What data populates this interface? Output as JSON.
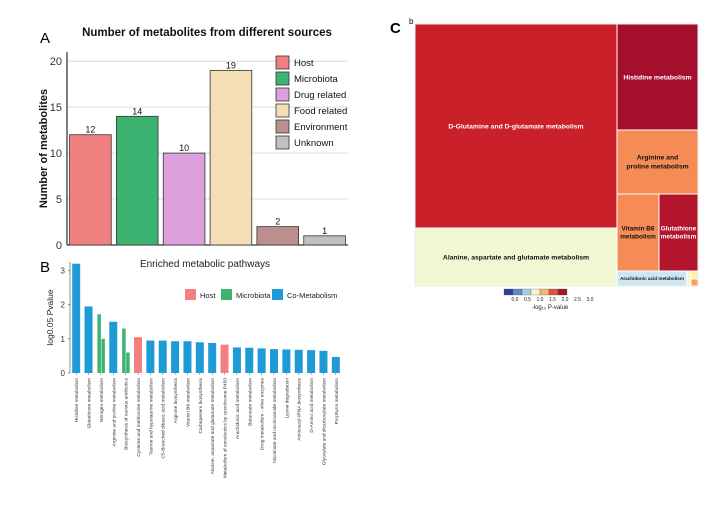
{
  "panels": {
    "a": "A",
    "b": "B",
    "c": "C",
    "c_small": "b"
  },
  "chart_data": [
    {
      "type": "bar",
      "id": "A",
      "title": "Number of metabolites from different sources",
      "ylabel": "Number of metabolites",
      "xlabel": "",
      "ylim": [
        0,
        21
      ],
      "yticks": [
        0,
        5,
        10,
        15,
        20
      ],
      "grid": true,
      "categories": [
        "Host",
        "Microbiota",
        "Drug related",
        "Food related",
        "Environment",
        "Unknown"
      ],
      "values": [
        12,
        14,
        10,
        19,
        2,
        1
      ],
      "colors": [
        "#f08080",
        "#3cb371",
        "#dda0dd",
        "#f5deb3",
        "#bc8f8f",
        "#c0c0c0"
      ],
      "legend": {
        "position": "right",
        "entries": [
          "Host",
          "Microbiota",
          "Drug related",
          "Food related",
          "Environment",
          "Unknown"
        ]
      }
    },
    {
      "type": "bar",
      "id": "B",
      "title": "Enriched metabolic pathways",
      "ylabel": "log0.05 Pvalue",
      "ylim": [
        0,
        3.25
      ],
      "yticks": [
        0,
        1,
        2,
        3
      ],
      "legend": {
        "position": "top-right",
        "entries": [
          {
            "name": "Host",
            "color": "#f28080"
          },
          {
            "name": "Microbiota",
            "color": "#3cb371"
          },
          {
            "name": "Co-Metabolism",
            "color": "#1e9bd7"
          }
        ]
      },
      "categories": [
        "Histidine metabolism",
        "Glutathione metabolism",
        "Nitrogen metabolism",
        "Arginine and proline metabolism",
        "Biosynthesis of various antibiotics",
        "Cysteine and methionine metabolism",
        "Taurine and hypotaurine metabolism",
        "C5-Branched dibasic acid metabolism",
        "Arginine biosynthesis",
        "Vitamin B6 metabolism",
        "Carbapenem biosynthesis",
        "Alanine, aspartate and glutamate metabolism",
        "Metabolism of xenobiotics by cytochrome P450",
        "Arachidonic acid metabolism",
        "Butanoate metabolism",
        "Drug metabolism - other enzymes",
        "Nicotinate and nicotinamide metabolism",
        "Lysine degradation",
        "Aminoacyl-tRNA biosynthesis",
        "D-Amino acid metabolism",
        "Glyoxylate and dicarboxylate metabolism",
        "Porphyrin metabolism"
      ],
      "bars": [
        [
          {
            "v": 3.2,
            "s": "co"
          }
        ],
        [
          {
            "v": 1.95,
            "s": "co"
          }
        ],
        [
          {
            "v": 1.72,
            "s": "micro"
          },
          {
            "v": 1.0,
            "s": "micro"
          }
        ],
        [
          {
            "v": 1.5,
            "s": "co"
          }
        ],
        [
          {
            "v": 1.3,
            "s": "micro"
          },
          {
            "v": 0.6,
            "s": "micro"
          }
        ],
        [
          {
            "v": 1.05,
            "s": "host"
          }
        ],
        [
          {
            "v": 0.95,
            "s": "co"
          }
        ],
        [
          {
            "v": 0.95,
            "s": "co"
          }
        ],
        [
          {
            "v": 0.93,
            "s": "co"
          }
        ],
        [
          {
            "v": 0.93,
            "s": "co"
          }
        ],
        [
          {
            "v": 0.9,
            "s": "co"
          }
        ],
        [
          {
            "v": 0.88,
            "s": "co"
          }
        ],
        [
          {
            "v": 0.83,
            "s": "host"
          }
        ],
        [
          {
            "v": 0.75,
            "s": "co"
          }
        ],
        [
          {
            "v": 0.74,
            "s": "co"
          }
        ],
        [
          {
            "v": 0.72,
            "s": "co"
          }
        ],
        [
          {
            "v": 0.7,
            "s": "co"
          }
        ],
        [
          {
            "v": 0.69,
            "s": "co"
          }
        ],
        [
          {
            "v": 0.68,
            "s": "co"
          }
        ],
        [
          {
            "v": 0.67,
            "s": "co"
          }
        ],
        [
          {
            "v": 0.65,
            "s": "co"
          }
        ],
        [
          {
            "v": 0.47,
            "s": "co"
          }
        ]
      ],
      "source_colors": {
        "host": "#f28080",
        "micro": "#3cb371",
        "co": "#1e9bd7"
      }
    },
    {
      "type": "treemap",
      "id": "C",
      "colorbar": {
        "label": "-log₁₀ P-value",
        "ticks": [
          "0.0",
          "0.5",
          "1.0",
          "1.5",
          "2.0",
          "2.5",
          "3.0"
        ],
        "colors": [
          "#2c3e9e",
          "#5b8dc9",
          "#a6cde3",
          "#f4f6c8",
          "#f8b377",
          "#e0523a",
          "#a51530"
        ]
      },
      "tiles": [
        {
          "label": "D-Glutamine and D-glutamate metabolism",
          "value": 2.6,
          "color": "#c9202a"
        },
        {
          "label": "Alanine, aspartate and glutamate metabolism",
          "value": 0.9,
          "color": "#f1f7d3"
        },
        {
          "label": "Histidine metabolism",
          "value": 3.0,
          "color": "#a50f2e"
        },
        {
          "label": "Arginine and proline metabolism",
          "value": 2.1,
          "color": "#f58b55"
        },
        {
          "label": "Vitamin B6 metabolism",
          "value": 2.0,
          "color": "#f68b56"
        },
        {
          "label": "Glutathione metabolism",
          "value": 2.9,
          "color": "#b3152c"
        },
        {
          "label": "Arachidonic acid metabolism",
          "value": 0.7,
          "color": "#cde7f2"
        },
        {
          "label": "",
          "value": 1.0,
          "color": "#fbf7c4"
        },
        {
          "label": "",
          "value": 1.3,
          "color": "#fdf2a9"
        },
        {
          "label": "",
          "value": 1.8,
          "color": "#f4a25e"
        }
      ]
    }
  ]
}
